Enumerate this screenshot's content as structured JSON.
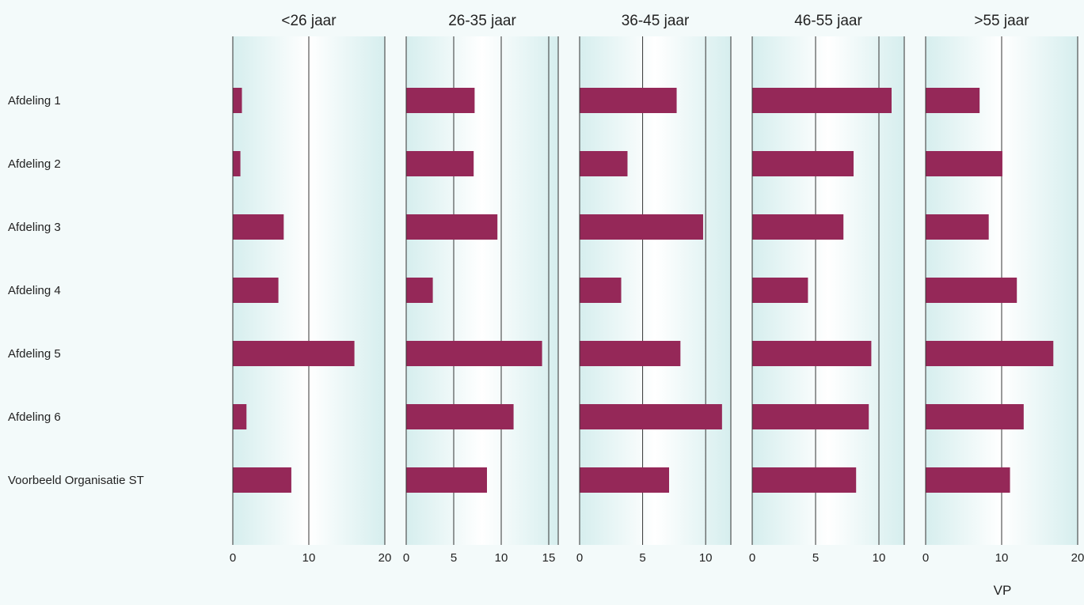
{
  "colors": {
    "bar": "#952858",
    "panel_edge": "#d6eeee",
    "panel_center": "#ffffff",
    "page_bg": "#f3fafa",
    "axis": "#333333"
  },
  "chart_data": {
    "type": "bar",
    "orientation": "horizontal",
    "grid": true,
    "categories": [
      "Afdeling 1",
      "Afdeling 2",
      "Afdeling 3",
      "Afdeling 4",
      "Afdeling 5",
      "Afdeling 6",
      "Voorbeeld Organisatie ST"
    ],
    "xlabel": "VP",
    "panels": [
      {
        "title": "<26 jaar",
        "xlim": [
          0,
          20
        ],
        "ticks": [
          0,
          10,
          20
        ],
        "tick_labels": [
          "0",
          "10",
          "20"
        ],
        "values": [
          1.2,
          1.0,
          6.7,
          6.0,
          16.0,
          1.8,
          7.7
        ]
      },
      {
        "title": "26-35 jaar",
        "xlim": [
          0,
          16
        ],
        "ticks": [
          0,
          5,
          10,
          15
        ],
        "tick_labels": [
          "0",
          "5",
          "10",
          "15"
        ],
        "values": [
          7.2,
          7.1,
          9.6,
          2.8,
          14.3,
          11.3,
          8.5
        ]
      },
      {
        "title": "36-45 jaar",
        "xlim": [
          0,
          12
        ],
        "ticks": [
          0,
          5,
          10
        ],
        "tick_labels": [
          "0",
          "5",
          "10"
        ],
        "values": [
          7.7,
          3.8,
          9.8,
          3.3,
          8.0,
          11.3,
          7.1
        ]
      },
      {
        "title": "46-55 jaar",
        "xlim": [
          0,
          12
        ],
        "ticks": [
          0,
          5,
          10
        ],
        "tick_labels": [
          "0",
          "5",
          "10"
        ],
        "values": [
          11.0,
          8.0,
          7.2,
          4.4,
          9.4,
          9.2,
          8.2
        ]
      },
      {
        "title": ">55 jaar",
        "xlim": [
          0,
          20
        ],
        "ticks": [
          0,
          10,
          20
        ],
        "tick_labels": [
          "0",
          "10",
          "20"
        ],
        "values": [
          7.1,
          10.1,
          8.3,
          12.0,
          16.8,
          12.9,
          11.1
        ]
      }
    ]
  }
}
